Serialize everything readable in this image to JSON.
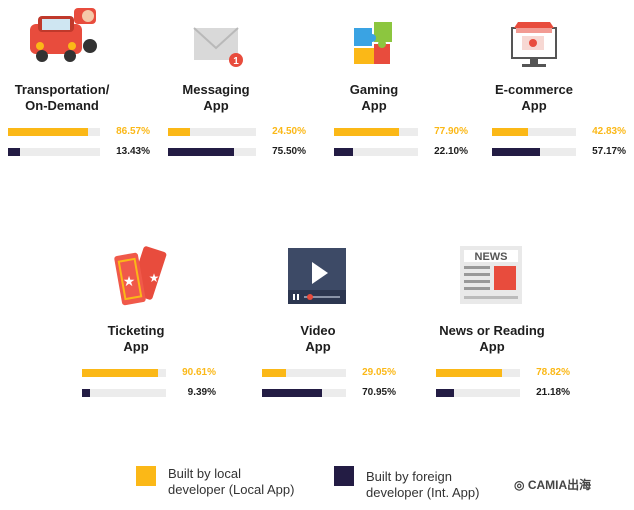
{
  "chart_data": {
    "type": "bar",
    "categories": [
      "Transportation/\nOn-Demand",
      "Messaging\nApp",
      "Gaming\nApp",
      "E-commerce\nApp",
      "Ticketing\nApp",
      "Video\nApp",
      "News or Reading\nApp"
    ],
    "series": [
      {
        "name": "Built by local\ndeveloper (Local App)",
        "values": [
          86.57,
          24.5,
          77.9,
          42.83,
          90.61,
          29.05,
          78.82
        ],
        "labels": [
          "86.57%",
          "24.50%",
          "77.90%",
          "42.83%",
          "90.61%",
          "29.05%",
          "78.82%"
        ],
        "color": "#fbb817"
      },
      {
        "name": "Built by foreign\ndeveloper (Int. App)",
        "values": [
          13.43,
          75.5,
          22.1,
          57.17,
          9.39,
          70.95,
          21.18
        ],
        "labels": [
          "13.43%",
          "75.50%",
          "22.10%",
          "57.17%",
          "9.39%",
          "70.95%",
          "21.18%"
        ],
        "color": "#231c44"
      }
    ],
    "ylim": [
      0,
      100
    ],
    "icons": [
      "car-icon",
      "envelope-icon",
      "puzzle-icon",
      "shop-icon",
      "ticket-icon",
      "video-player-icon",
      "newspaper-icon"
    ]
  },
  "icon_text": {
    "news": "NEWS"
  },
  "watermark": "CAMIA出海"
}
